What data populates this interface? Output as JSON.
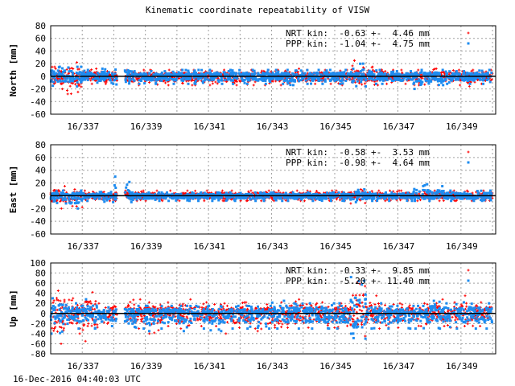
{
  "title": "Kinematic coordinate repeatability of VISW",
  "timestamp": "16-Dec-2016 04:40:03 UTC",
  "colors": {
    "NRT": "#ff0000",
    "PPP": "#1e8cf0",
    "zero_line": "#000000",
    "grid": "#a0a0a0"
  },
  "chart_data": [
    {
      "type": "scatter",
      "ylabel": "North [mm]",
      "ylim": [
        -60,
        80
      ],
      "yticks": [
        -60,
        -40,
        -20,
        0,
        20,
        40,
        60,
        80
      ],
      "xlim": [
        336.0,
        350.1
      ],
      "xticks": [
        337,
        339,
        341,
        343,
        345,
        347,
        349
      ],
      "xtick_labels": [
        "16/337",
        "16/339",
        "16/341",
        "16/343",
        "16/345",
        "16/347",
        "16/349"
      ],
      "grid": true,
      "legend_position": "top-right",
      "gaps": [
        [
          338.1,
          338.35
        ]
      ],
      "bin_start": 336.0,
      "bin_width_days": 0.5,
      "series": [
        {
          "name": "NRT kin",
          "legend": "NRT kin:  -0.63 +-  4.46 mm",
          "marker": "plus",
          "upper": [
            15,
            22,
            12,
            8,
            10,
            10,
            10,
            10,
            10,
            10,
            10,
            10,
            10,
            10,
            10,
            12,
            10,
            10,
            10,
            25,
            15,
            10,
            10,
            10,
            12,
            10,
            10,
            10
          ],
          "lower": [
            -20,
            -28,
            -12,
            -12,
            -12,
            -14,
            -13,
            -14,
            -14,
            -14,
            -14,
            -14,
            -14,
            -14,
            -14,
            -12,
            -12,
            -12,
            -14,
            -16,
            -14,
            -12,
            -12,
            -14,
            -14,
            -14,
            -16,
            -12
          ]
        },
        {
          "name": "PPP kin",
          "legend": "PPP kin:  -1.04 +-  4.75 mm",
          "marker": "square",
          "upper": [
            15,
            15,
            10,
            12,
            20,
            8,
            8,
            8,
            10,
            10,
            10,
            10,
            10,
            10,
            10,
            10,
            10,
            10,
            10,
            20,
            10,
            8,
            8,
            10,
            10,
            8,
            8,
            10
          ],
          "lower": [
            -15,
            -16,
            -10,
            -12,
            -14,
            -12,
            -12,
            -12,
            -12,
            -12,
            -12,
            -12,
            -12,
            -12,
            -12,
            -14,
            -12,
            -12,
            -12,
            -16,
            -12,
            -12,
            -12,
            -20,
            -14,
            -12,
            -12,
            -12
          ]
        }
      ]
    },
    {
      "type": "scatter",
      "ylabel": "East [mm]",
      "ylim": [
        -60,
        80
      ],
      "yticks": [
        -60,
        -40,
        -20,
        0,
        20,
        40,
        60,
        80
      ],
      "xlim": [
        336.0,
        350.1
      ],
      "xticks": [
        337,
        339,
        341,
        343,
        345,
        347,
        349
      ],
      "xtick_labels": [
        "16/337",
        "16/339",
        "16/341",
        "16/343",
        "16/345",
        "16/347",
        "16/349"
      ],
      "grid": true,
      "legend_position": "top-right",
      "gaps": [
        [
          338.1,
          338.35
        ]
      ],
      "bin_start": 336.0,
      "bin_width_days": 0.5,
      "series": [
        {
          "name": "NRT kin",
          "legend": "NRT kin:  -0.58 +-  3.53 mm",
          "marker": "plus",
          "upper": [
            15,
            10,
            8,
            6,
            8,
            8,
            8,
            8,
            8,
            8,
            8,
            8,
            8,
            8,
            8,
            8,
            8,
            8,
            8,
            10,
            8,
            8,
            8,
            8,
            8,
            8,
            8,
            8
          ],
          "lower": [
            -20,
            -18,
            -8,
            -8,
            -8,
            -8,
            -8,
            -8,
            -8,
            -8,
            -8,
            -8,
            -8,
            -8,
            -8,
            -8,
            -8,
            -8,
            -8,
            -12,
            -8,
            -8,
            -8,
            -8,
            -8,
            -8,
            -8,
            -8
          ]
        },
        {
          "name": "PPP kin",
          "legend": "PPP kin:  -0.98 +-  4.64 mm",
          "marker": "square",
          "upper": [
            8,
            8,
            4,
            6,
            30,
            5,
            5,
            5,
            5,
            5,
            5,
            5,
            5,
            5,
            5,
            5,
            5,
            5,
            5,
            10,
            5,
            5,
            5,
            18,
            15,
            8,
            5,
            8
          ],
          "lower": [
            -12,
            -20,
            -8,
            -10,
            -10,
            -10,
            -8,
            -8,
            -8,
            -8,
            -8,
            -8,
            -8,
            -8,
            -8,
            -8,
            -8,
            -8,
            -8,
            -10,
            -8,
            -8,
            -8,
            -8,
            -8,
            -8,
            -8,
            -8
          ]
        }
      ]
    },
    {
      "type": "scatter",
      "ylabel": "Up [mm]",
      "ylim": [
        -80,
        100
      ],
      "yticks": [
        -80,
        -60,
        -40,
        -20,
        0,
        20,
        40,
        60,
        80,
        100
      ],
      "xlim": [
        336.0,
        350.1
      ],
      "xticks": [
        337,
        339,
        341,
        343,
        345,
        347,
        349
      ],
      "xtick_labels": [
        "16/337",
        "16/339",
        "16/341",
        "16/343",
        "16/345",
        "16/347",
        "16/349"
      ],
      "grid": true,
      "legend_position": "top-right",
      "gaps": [
        [
          338.1,
          338.35
        ]
      ],
      "bin_start": 336.0,
      "bin_width_days": 0.5,
      "series": [
        {
          "name": "NRT kin",
          "legend": "NRT kin:  -0.33 +-  9.85 mm",
          "marker": "plus",
          "upper": [
            45,
            30,
            42,
            20,
            25,
            28,
            22,
            22,
            28,
            22,
            18,
            20,
            22,
            18,
            22,
            28,
            20,
            22,
            20,
            65,
            35,
            18,
            20,
            20,
            28,
            22,
            35,
            22
          ],
          "lower": [
            -60,
            -40,
            -55,
            -20,
            -22,
            -30,
            -40,
            -25,
            -30,
            -25,
            -25,
            -40,
            -30,
            -35,
            -28,
            -28,
            -28,
            -28,
            -30,
            -45,
            -30,
            -28,
            -28,
            -25,
            -25,
            -28,
            -25,
            -25
          ]
        },
        {
          "name": "PPP kin",
          "legend": "PPP kin:  -5.20 +- 11.40 mm",
          "marker": "square",
          "upper": [
            30,
            20,
            28,
            12,
            15,
            15,
            15,
            15,
            15,
            15,
            15,
            15,
            15,
            15,
            25,
            20,
            20,
            20,
            20,
            72,
            20,
            15,
            15,
            15,
            25,
            20,
            22,
            20
          ],
          "lower": [
            -40,
            -30,
            -30,
            -25,
            -28,
            -30,
            -35,
            -30,
            -35,
            -30,
            -35,
            -30,
            -30,
            -30,
            -30,
            -30,
            -30,
            -30,
            -30,
            -50,
            -30,
            -30,
            -30,
            -30,
            -30,
            -30,
            -30,
            -30
          ]
        }
      ]
    }
  ]
}
